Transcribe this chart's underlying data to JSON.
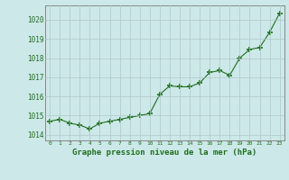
{
  "x": [
    0,
    1,
    2,
    3,
    4,
    5,
    6,
    7,
    8,
    9,
    10,
    11,
    12,
    13,
    14,
    15,
    16,
    17,
    18,
    19,
    20,
    21,
    22,
    23
  ],
  "y": [
    1014.7,
    1014.8,
    1014.6,
    1014.5,
    1014.3,
    1014.6,
    1014.7,
    1014.8,
    1014.9,
    1015.0,
    1015.1,
    1016.1,
    1016.55,
    1016.5,
    1016.5,
    1016.7,
    1017.25,
    1017.35,
    1017.1,
    1018.0,
    1018.45,
    1018.55,
    1019.35,
    1020.35
  ],
  "line_color": "#1f6e1f",
  "marker_color": "#1f6e1f",
  "bg_color": "#cce8e8",
  "grid_color": "#b0c8c8",
  "xlabel": "Graphe pression niveau de la mer (hPa)",
  "xlabel_color": "#1f6e1f",
  "ylabel_ticks": [
    1014,
    1015,
    1016,
    1017,
    1018,
    1019,
    1020
  ],
  "xtick_labels": [
    "0",
    "1",
    "2",
    "3",
    "4",
    "5",
    "6",
    "7",
    "8",
    "9",
    "10",
    "11",
    "12",
    "13",
    "14",
    "15",
    "16",
    "17",
    "18",
    "19",
    "20",
    "21",
    "22",
    "23"
  ],
  "ylim": [
    1013.7,
    1020.75
  ],
  "xlim": [
    -0.5,
    23.5
  ],
  "axis_color": "#888888"
}
